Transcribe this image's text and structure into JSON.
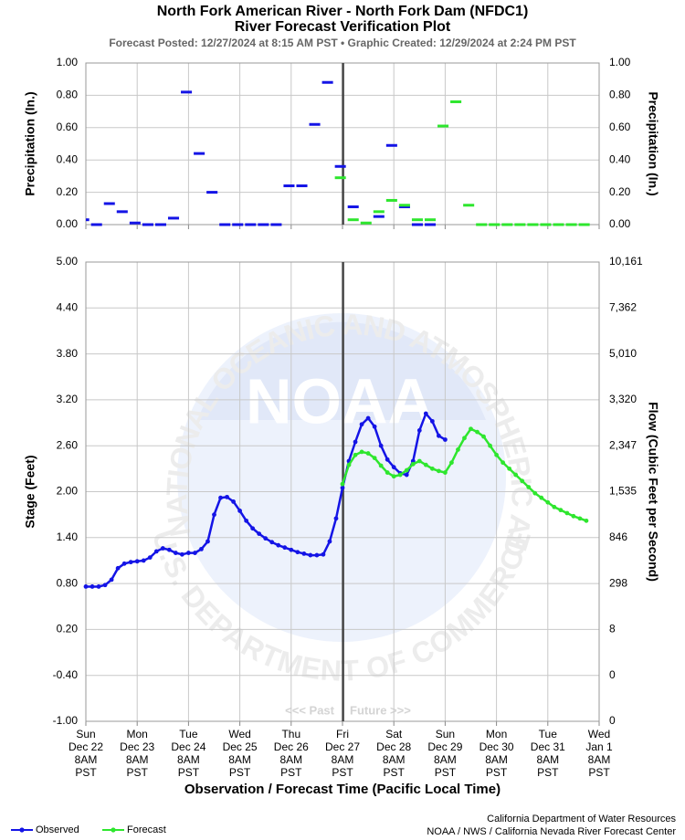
{
  "header": {
    "title": "North Fork American River - North Fork Dam (NFDC1)",
    "title2": "River Forecast Verification Plot",
    "subtitle": "Forecast Posted: 12/27/2024 at 8:15 AM PST  •  Graphic Created: 12/29/2024 at 2:24 PM PST"
  },
  "watermark": {
    "top": "NATIONAL OCEANIC AND ATMOSPHERIC ADMINISTRATION",
    "bottom": "U.S. DEPARTMENT OF COMMERCE",
    "center": "NOAA"
  },
  "past_label": "<<< Past",
  "future_label": "Future >>>",
  "credits": [
    "California Department of Water Resources",
    "NOAA / NWS / California Nevada River Forecast Center"
  ],
  "chart_data": [
    {
      "type": "dash",
      "ylabel": "Precipitation (In.)",
      "y2label": "Precipitation (In.)",
      "period_hours": 6,
      "xlim": [
        "Dec 22 08:00",
        "Jan 1 08:00"
      ],
      "ylim": [
        0,
        1
      ],
      "yticks": [
        {
          "value": 0,
          "label": "0.00"
        },
        {
          "value": 0.2,
          "label": "0.20"
        },
        {
          "value": 0.4,
          "label": "0.40"
        },
        {
          "value": 0.6,
          "label": "0.60"
        },
        {
          "value": 0.8,
          "label": "0.80"
        },
        {
          "value": 1,
          "label": "1.00"
        }
      ],
      "grid": true,
      "now_line": "Dec 27 08:15",
      "x": [
        "Dec 22 10:00",
        "Dec 22 16:00",
        "Dec 22 22:00",
        "Dec 23 04:00",
        "Dec 23 10:00",
        "Dec 23 16:00",
        "Dec 23 22:00",
        "Dec 24 04:00",
        "Dec 24 10:00",
        "Dec 24 16:00",
        "Dec 24 22:00",
        "Dec 25 04:00",
        "Dec 25 10:00",
        "Dec 25 16:00",
        "Dec 25 22:00",
        "Dec 26 04:00",
        "Dec 26 10:00",
        "Dec 26 16:00",
        "Dec 26 22:00",
        "Dec 27 04:00",
        "Dec 27 10:00",
        "Dec 27 16:00",
        "Dec 27 22:00",
        "Dec 28 04:00",
        "Dec 28 10:00",
        "Dec 28 16:00",
        "Dec 28 22:00",
        "Dec 29 04:00",
        "Dec 29 10:00",
        "Dec 29 16:00",
        "Dec 29 22:00",
        "Dec 30 04:00",
        "Dec 30 10:00",
        "Dec 30 16:00",
        "Dec 30 22:00",
        "Dec 31 04:00",
        "Dec 31 10:00",
        "Dec 31 16:00",
        "Dec 31 22:00",
        "Jan 1 04:00"
      ],
      "series": [
        {
          "name": "Observed",
          "color": "#1414e6",
          "values": [
            0.03,
            0.0,
            0.13,
            0.08,
            0.01,
            0.0,
            0.0,
            0.04,
            0.82,
            0.44,
            0.2,
            0.0,
            0.0,
            0.0,
            0.0,
            0.0,
            0.24,
            0.24,
            0.62,
            0.88,
            0.36,
            0.11,
            null,
            0.05,
            0.49,
            0.11,
            0.0,
            0.0,
            null,
            null,
            null,
            null,
            null,
            null,
            null,
            null,
            null,
            null,
            null,
            null
          ]
        },
        {
          "name": "Forecast",
          "color": "#2ee62e",
          "values": [
            null,
            null,
            null,
            null,
            null,
            null,
            null,
            null,
            null,
            null,
            null,
            null,
            null,
            null,
            null,
            null,
            null,
            null,
            null,
            null,
            0.29,
            0.03,
            0.01,
            0.08,
            0.15,
            0.12,
            0.03,
            0.03,
            0.61,
            0.76,
            0.12,
            0.0,
            0.0,
            0.0,
            0.0,
            0.0,
            0.0,
            0.0,
            0.0,
            0.0
          ]
        }
      ]
    },
    {
      "type": "line",
      "ylabel": "Stage (Feet)",
      "y2label": "Flow (Cubic Feet per Second)",
      "xlabel": "Observation / Forecast Time (Pacific Local Time)",
      "xlim": [
        "Dec 22 08:00",
        "Jan 1 08:00"
      ],
      "xticks": [
        {
          "value": "Dec 22 08:00",
          "label": [
            "Sun",
            "Dec 22",
            "8AM",
            "PST"
          ]
        },
        {
          "value": "Dec 23 08:00",
          "label": [
            "Mon",
            "Dec 23",
            "8AM",
            "PST"
          ]
        },
        {
          "value": "Dec 24 08:00",
          "label": [
            "Tue",
            "Dec 24",
            "8AM",
            "PST"
          ]
        },
        {
          "value": "Dec 25 08:00",
          "label": [
            "Wed",
            "Dec 25",
            "8AM",
            "PST"
          ]
        },
        {
          "value": "Dec 26 08:00",
          "label": [
            "Thu",
            "Dec 26",
            "8AM",
            "PST"
          ]
        },
        {
          "value": "Dec 27 08:00",
          "label": [
            "Fri",
            "Dec 27",
            "8AM",
            "PST"
          ]
        },
        {
          "value": "Dec 28 08:00",
          "label": [
            "Sat",
            "Dec 28",
            "8AM",
            "PST"
          ]
        },
        {
          "value": "Dec 29 08:00",
          "label": [
            "Sun",
            "Dec 29",
            "8AM",
            "PST"
          ]
        },
        {
          "value": "Dec 30 08:00",
          "label": [
            "Mon",
            "Dec 30",
            "8AM",
            "PST"
          ]
        },
        {
          "value": "Dec 31 08:00",
          "label": [
            "Tue",
            "Dec 31",
            "8AM",
            "PST"
          ]
        },
        {
          "value": "Jan 1 08:00",
          "label": [
            "Wed",
            "Jan 1",
            "8AM",
            "PST"
          ]
        }
      ],
      "ylim": [
        -1,
        5
      ],
      "yticks": [
        {
          "value": -1,
          "label": "-1.00"
        },
        {
          "value": -0.4,
          "label": "-0.40"
        },
        {
          "value": 0.2,
          "label": "0.20"
        },
        {
          "value": 0.8,
          "label": "0.80"
        },
        {
          "value": 1.4,
          "label": "1.40"
        },
        {
          "value": 2,
          "label": "2.00"
        },
        {
          "value": 2.6,
          "label": "2.60"
        },
        {
          "value": 3.2,
          "label": "3.20"
        },
        {
          "value": 3.8,
          "label": "3.80"
        },
        {
          "value": 4.4,
          "label": "4.40"
        },
        {
          "value": 5,
          "label": "5.00"
        }
      ],
      "y2ticks": [
        0,
        0,
        8,
        298,
        846,
        {
          "value": 1535,
          "label": "1,535"
        },
        {
          "value": 2347,
          "label": "2,347"
        },
        {
          "value": 3320,
          "label": "3,320"
        },
        {
          "value": 5010,
          "label": "5,010"
        },
        {
          "value": 7362,
          "label": "7,362"
        },
        {
          "value": 10161,
          "label": "10,161"
        }
      ],
      "grid": true,
      "now_line": "Dec 27 08:15",
      "x": [
        "Dec 22 08:00",
        "Dec 22 11:00",
        "Dec 22 14:00",
        "Dec 22 17:00",
        "Dec 22 20:00",
        "Dec 22 23:00",
        "Dec 23 02:00",
        "Dec 23 05:00",
        "Dec 23 08:00",
        "Dec 23 11:00",
        "Dec 23 14:00",
        "Dec 23 17:00",
        "Dec 23 20:00",
        "Dec 23 23:00",
        "Dec 24 02:00",
        "Dec 24 05:00",
        "Dec 24 08:00",
        "Dec 24 11:00",
        "Dec 24 14:00",
        "Dec 24 17:00",
        "Dec 24 20:00",
        "Dec 24 23:00",
        "Dec 25 02:00",
        "Dec 25 05:00",
        "Dec 25 08:00",
        "Dec 25 11:00",
        "Dec 25 14:00",
        "Dec 25 17:00",
        "Dec 25 20:00",
        "Dec 25 23:00",
        "Dec 26 02:00",
        "Dec 26 05:00",
        "Dec 26 08:00",
        "Dec 26 11:00",
        "Dec 26 14:00",
        "Dec 26 17:00",
        "Dec 26 20:00",
        "Dec 26 23:00",
        "Dec 27 02:00",
        "Dec 27 05:00",
        "Dec 27 08:00",
        "Dec 27 11:00",
        "Dec 27 14:00",
        "Dec 27 17:00",
        "Dec 27 20:00",
        "Dec 27 23:00",
        "Dec 28 02:00",
        "Dec 28 05:00",
        "Dec 28 08:00",
        "Dec 28 11:00",
        "Dec 28 14:00",
        "Dec 28 17:00",
        "Dec 28 20:00",
        "Dec 28 23:00",
        "Dec 29 02:00",
        "Dec 29 05:00",
        "Dec 29 08:00",
        "Dec 29 11:00",
        "Dec 29 14:00",
        "Dec 29 17:00",
        "Dec 29 20:00",
        "Dec 29 23:00",
        "Dec 30 02:00",
        "Dec 30 05:00",
        "Dec 30 08:00",
        "Dec 30 11:00",
        "Dec 30 14:00",
        "Dec 30 17:00",
        "Dec 30 20:00",
        "Dec 30 23:00",
        "Dec 31 02:00",
        "Dec 31 05:00",
        "Dec 31 08:00",
        "Dec 31 11:00",
        "Dec 31 14:00",
        "Dec 31 17:00",
        "Dec 31 20:00",
        "Dec 31 23:00",
        "Jan 1 02:00"
      ],
      "series": [
        {
          "name": "Observed",
          "color": "#1414e6",
          "values": [
            0.76,
            0.76,
            0.76,
            0.78,
            0.85,
            1.0,
            1.06,
            1.08,
            1.09,
            1.1,
            1.14,
            1.22,
            1.26,
            1.24,
            1.2,
            1.18,
            1.2,
            1.2,
            1.25,
            1.35,
            1.7,
            1.92,
            1.93,
            1.87,
            1.75,
            1.62,
            1.52,
            1.45,
            1.39,
            1.34,
            1.3,
            1.27,
            1.24,
            1.21,
            1.19,
            1.17,
            1.17,
            1.18,
            1.35,
            1.65,
            2.05,
            2.4,
            2.65,
            2.88,
            2.96,
            2.85,
            2.6,
            2.42,
            2.32,
            2.24,
            2.22,
            2.4,
            2.8,
            3.02,
            2.92,
            2.73,
            2.68,
            null,
            null,
            null,
            null,
            null,
            null,
            null,
            null,
            null,
            null,
            null,
            null,
            null,
            null,
            null,
            null,
            null,
            null,
            null,
            null,
            null,
            null
          ]
        },
        {
          "name": "Forecast",
          "color": "#2ee62e",
          "values": [
            null,
            null,
            null,
            null,
            null,
            null,
            null,
            null,
            null,
            null,
            null,
            null,
            null,
            null,
            null,
            null,
            null,
            null,
            null,
            null,
            null,
            null,
            null,
            null,
            null,
            null,
            null,
            null,
            null,
            null,
            null,
            null,
            null,
            null,
            null,
            null,
            null,
            null,
            null,
            null,
            2.1,
            2.35,
            2.48,
            2.52,
            2.5,
            2.44,
            2.34,
            2.25,
            2.2,
            2.22,
            2.28,
            2.36,
            2.4,
            2.35,
            2.3,
            2.27,
            2.25,
            2.38,
            2.55,
            2.7,
            2.82,
            2.78,
            2.72,
            2.6,
            2.48,
            2.38,
            2.3,
            2.22,
            2.14,
            2.06,
            1.98,
            1.92,
            1.86,
            1.8,
            1.76,
            1.72,
            1.68,
            1.65,
            1.62
          ]
        }
      ]
    }
  ]
}
